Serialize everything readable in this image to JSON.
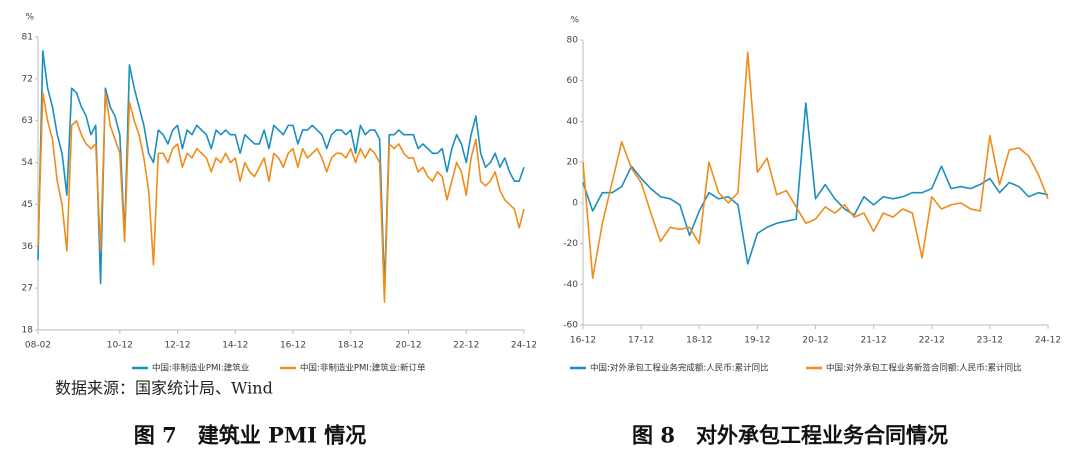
{
  "chart_data": [
    {
      "type": "line",
      "title": "图 7　建筑业 PMI 情况",
      "y_label": "%",
      "source": "数据来源：国家统计局、Wind",
      "categories": [
        "08-02",
        null,
        null,
        null,
        null,
        null,
        null,
        null,
        null,
        null,
        null,
        null,
        null,
        null,
        null,
        null,
        null,
        "10-12",
        null,
        null,
        null,
        null,
        null,
        null,
        null,
        null,
        null,
        null,
        null,
        "12-12",
        null,
        null,
        null,
        null,
        null,
        null,
        null,
        null,
        null,
        null,
        null,
        "14-12",
        null,
        null,
        null,
        null,
        null,
        null,
        null,
        null,
        null,
        null,
        null,
        "16-12",
        null,
        null,
        null,
        null,
        null,
        null,
        null,
        null,
        null,
        null,
        null,
        "18-12",
        null,
        null,
        null,
        null,
        null,
        null,
        null,
        null,
        null,
        null,
        null,
        "20-12",
        null,
        null,
        null,
        null,
        null,
        null,
        null,
        null,
        null,
        null,
        null,
        "22-12",
        null,
        null,
        null,
        null,
        null,
        null,
        null,
        null,
        null,
        null,
        null,
        "24-12"
      ],
      "series": [
        {
          "name": "中国:非制造业PMI:建筑业",
          "color": "#1b8fbf",
          "values": [
            33,
            78,
            70,
            66,
            60,
            56,
            47,
            70,
            69,
            66,
            64,
            60,
            62,
            28,
            70,
            66,
            64,
            60,
            38,
            75,
            70,
            66,
            62,
            56,
            54,
            61,
            60,
            58,
            61,
            62,
            57,
            61,
            60,
            62,
            61,
            60,
            57,
            61,
            60,
            61,
            60,
            60,
            56,
            60,
            59,
            58,
            58,
            61,
            57,
            62,
            61,
            60,
            62,
            62,
            58,
            61,
            61,
            62,
            61,
            60,
            57,
            60,
            61,
            61,
            60,
            61,
            56,
            62,
            60,
            61,
            61,
            59,
            27,
            60,
            60,
            61,
            60,
            60,
            60,
            57,
            58,
            57,
            56,
            56,
            57,
            52,
            57,
            60,
            58,
            54,
            60,
            64,
            56,
            53,
            54,
            56,
            53,
            55,
            52,
            50,
            50,
            53
          ]
        },
        {
          "name": "中国:非制造业PMI:建筑业:新订单",
          "color": "#f08c1a",
          "values": [
            36,
            69,
            63,
            59,
            50,
            45,
            35,
            62,
            63,
            60,
            58,
            57,
            58,
            35,
            69,
            62,
            59,
            56,
            37,
            67,
            63,
            60,
            55,
            48,
            32,
            56,
            56,
            54,
            57,
            58,
            53,
            56,
            55,
            57,
            56,
            55,
            52,
            55,
            54,
            56,
            54,
            55,
            50,
            54,
            52,
            51,
            53,
            55,
            50,
            56,
            55,
            53,
            56,
            57,
            53,
            57,
            55,
            56,
            57,
            55,
            52,
            55,
            56,
            56,
            55,
            57,
            54,
            57,
            55,
            57,
            56,
            54,
            24,
            58,
            57,
            58,
            56,
            55,
            55,
            52,
            53,
            51,
            50,
            52,
            51,
            46,
            50,
            54,
            52,
            47,
            55,
            59,
            50,
            49,
            50,
            52,
            48,
            46,
            45,
            44,
            40,
            44
          ]
        }
      ],
      "ylim": [
        18,
        81
      ],
      "yticks": [
        18,
        27,
        36,
        45,
        54,
        63,
        72,
        81
      ],
      "grid": false,
      "legend": "bottom"
    },
    {
      "type": "line",
      "title": "图 8　对外承包工程业务合同情况",
      "y_label": "%",
      "categories": [
        "16-12",
        null,
        null,
        null,
        null,
        null,
        "17-12",
        null,
        null,
        null,
        null,
        null,
        "18-12",
        null,
        null,
        null,
        null,
        null,
        "19-12",
        null,
        null,
        null,
        null,
        null,
        "20-12",
        null,
        null,
        null,
        null,
        null,
        "21-12",
        null,
        null,
        null,
        null,
        null,
        "22-12",
        null,
        null,
        null,
        null,
        null,
        "23-12",
        null,
        null,
        null,
        null,
        null,
        "24-12"
      ],
      "series": [
        {
          "name": "中国:对外承包工程业务完成额:人民币:累计同比",
          "color": "#1b8fbf",
          "values": [
            10,
            -4,
            5,
            5,
            8,
            18,
            12,
            7,
            3,
            2,
            -1,
            -16,
            -4,
            5,
            2,
            3,
            -1,
            -30,
            -15,
            -12,
            -10,
            -9,
            -8,
            49,
            2,
            9,
            2,
            -3,
            -6,
            3,
            -1,
            3,
            2,
            3,
            5,
            5,
            7,
            18,
            7,
            8,
            7,
            9,
            12,
            5,
            10,
            8,
            3,
            5,
            4
          ]
        },
        {
          "name": "中国:对外承包工程业务新签合同额:人民币:累计同比",
          "color": "#f08c1a",
          "values": [
            20,
            -37,
            -10,
            10,
            30,
            17,
            10,
            -5,
            -19,
            -12,
            -13,
            -12,
            -20,
            20,
            5,
            0,
            5,
            74,
            15,
            22,
            4,
            6,
            -2,
            -10,
            -8,
            -2,
            -5,
            -1,
            -7,
            -5,
            -14,
            -5,
            -7,
            -3,
            -5,
            -27,
            3,
            -3,
            -1,
            0,
            -3,
            -4,
            33,
            9,
            26,
            27,
            23,
            14,
            2
          ]
        }
      ],
      "ylim": [
        -60,
        80
      ],
      "yticks": [
        -60,
        -40,
        -20,
        0,
        20,
        40,
        60,
        80
      ],
      "grid": false,
      "legend": "bottom"
    }
  ]
}
